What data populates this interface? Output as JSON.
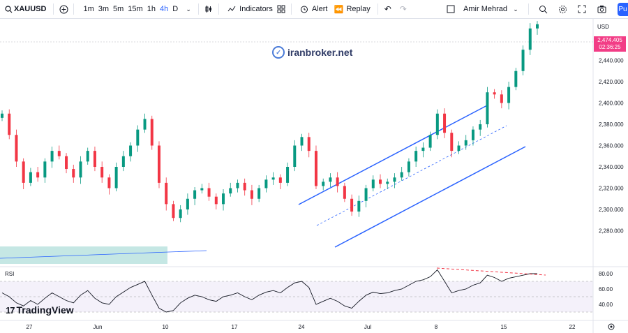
{
  "toolbar": {
    "symbol": "XAUUSD",
    "intervals": [
      "1m",
      "3m",
      "5m",
      "15m",
      "1h",
      "4h",
      "D"
    ],
    "active_interval": "4h",
    "indicators_label": "Indicators",
    "alert_label": "Alert",
    "replay_label": "Replay",
    "user_name": "Amir Mehrad",
    "publish_label": "Pu"
  },
  "watermark": {
    "text": "iranbroker.net"
  },
  "price_axis": {
    "currency": "USD",
    "ticks": [
      "2,460.000",
      "2,440.000",
      "2,420.000",
      "2,400.000",
      "2,380.000",
      "2,360.000",
      "2,340.000",
      "2,320.000",
      "2,300.000",
      "2,280.000"
    ],
    "current_price": "2,474.405",
    "countdown": "02:36:25"
  },
  "rsi": {
    "label": "RSI",
    "ticks": [
      "80.00",
      "60.00",
      "40.00"
    ]
  },
  "time_axis": {
    "labels": [
      "27",
      "Jun",
      "10",
      "17",
      "24",
      "Jul",
      "8",
      "15",
      "22"
    ]
  },
  "brand": {
    "text": "TradingView"
  },
  "colors": {
    "up": "#089981",
    "down": "#f23645",
    "channel": "#2962ff",
    "accent": "#2962ff",
    "price_tag": "#f23d86"
  },
  "chart_data": {
    "type": "candlestick",
    "symbol": "XAUUSD",
    "timeframe": "4h",
    "ylim": [
      2280,
      2480
    ],
    "close_path": [
      2390,
      2370,
      2345,
      2325,
      2335,
      2330,
      2345,
      2355,
      2350,
      2338,
      2330,
      2345,
      2355,
      2340,
      2330,
      2320,
      2340,
      2350,
      2360,
      2375,
      2385,
      2360,
      2325,
      2305,
      2292,
      2300,
      2310,
      2318,
      2320,
      2312,
      2305,
      2315,
      2320,
      2325,
      2318,
      2310,
      2320,
      2328,
      2330,
      2325,
      2340,
      2360,
      2368,
      2355,
      2322,
      2326,
      2330,
      2322,
      2310,
      2298,
      2308,
      2320,
      2328,
      2324,
      2326,
      2330,
      2335,
      2345,
      2355,
      2358,
      2370,
      2390,
      2372,
      2355,
      2360,
      2365,
      2375,
      2380,
      2410,
      2408,
      2400,
      2415,
      2430,
      2450,
      2470,
      2474
    ],
    "rsi_values": [
      55,
      50,
      42,
      38,
      45,
      40,
      48,
      55,
      50,
      45,
      42,
      52,
      58,
      48,
      42,
      40,
      50,
      56,
      62,
      66,
      70,
      52,
      35,
      30,
      32,
      42,
      48,
      52,
      50,
      46,
      44,
      50,
      52,
      55,
      50,
      46,
      52,
      56,
      58,
      55,
      62,
      68,
      70,
      62,
      40,
      44,
      48,
      44,
      38,
      35,
      44,
      52,
      56,
      54,
      55,
      58,
      60,
      65,
      70,
      72,
      76,
      85,
      70,
      55,
      58,
      60,
      65,
      68,
      78,
      75,
      70,
      74,
      76,
      78,
      80,
      80
    ],
    "rsi_levels": [
      70,
      50,
      30
    ],
    "rsi_ticks": [
      80,
      60,
      40
    ]
  }
}
